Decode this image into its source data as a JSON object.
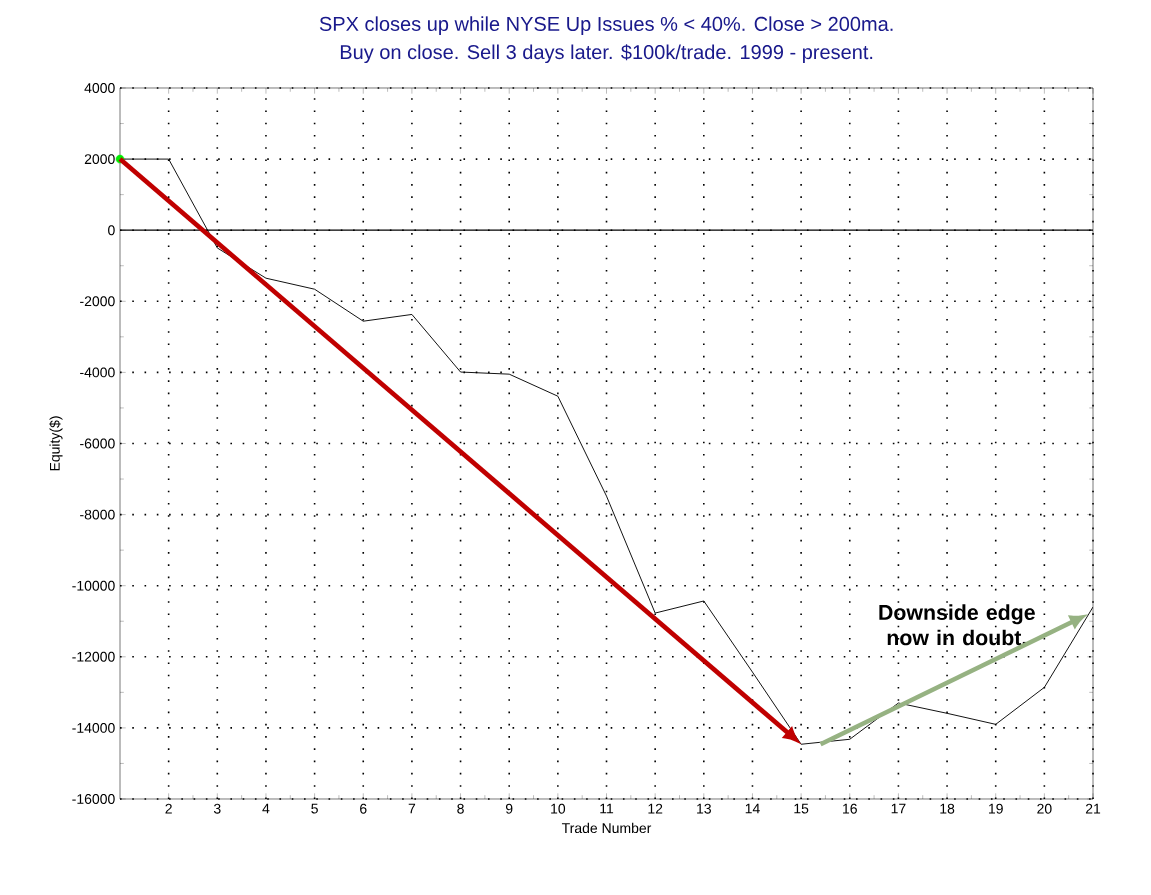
{
  "chart_data": {
    "type": "line",
    "title": "SPX closes up while NYSE Up Issues % < 40%. Close > 200ma.",
    "subtitle": "Buy on close. Sell 3 days later. $100k/trade. 1999 - present.",
    "xlabel": "Trade Number",
    "ylabel": "Equity($)",
    "x": [
      1,
      2,
      3,
      4,
      5,
      6,
      7,
      8,
      9,
      10,
      11,
      12,
      13,
      14,
      15,
      16,
      17,
      18,
      19,
      20,
      21
    ],
    "series": [
      {
        "color": "#000000",
        "values": [
          2000,
          2000,
          -500,
          -1350,
          -1660,
          -2560,
          -2370,
          -3990,
          -4050,
          -4670,
          -7480,
          -10770,
          -10430,
          -12430,
          -14460,
          -14320,
          -13300,
          -13590,
          -13900,
          -12860,
          -10600
        ]
      },
      {
        "type": "scatter",
        "color": "#00ee00",
        "x": [
          1
        ],
        "values": [
          2000
        ]
      }
    ],
    "xlim": [
      1,
      21
    ],
    "ylim": [
      -16000,
      4000
    ],
    "xticks": [
      2,
      3,
      4,
      5,
      6,
      7,
      8,
      9,
      10,
      11,
      12,
      13,
      14,
      15,
      16,
      17,
      18,
      19,
      20,
      21
    ],
    "yticks": [
      -16000,
      -14000,
      -12000,
      -10000,
      -8000,
      -6000,
      -4000,
      -2000,
      0,
      2000,
      4000
    ],
    "grid": true,
    "annotations": [
      "Downside edge now in doubt."
    ]
  }
}
